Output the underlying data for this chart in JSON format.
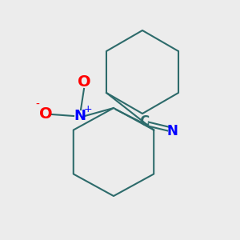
{
  "background_color": "#ececec",
  "ring_color": "#2d6b6b",
  "ring_linewidth": 1.5,
  "N_color": "#0000ff",
  "O_color": "#ff0000",
  "C_color": "#2d6b6b",
  "bond_color": "#2d6b6b",
  "text_N": "N",
  "text_O_top": "O",
  "text_O_left": "O",
  "text_plus": "+",
  "text_minus": "-",
  "text_C": "C",
  "text_N2": "N",
  "figsize": [
    3.0,
    3.0
  ],
  "dpi": 100
}
